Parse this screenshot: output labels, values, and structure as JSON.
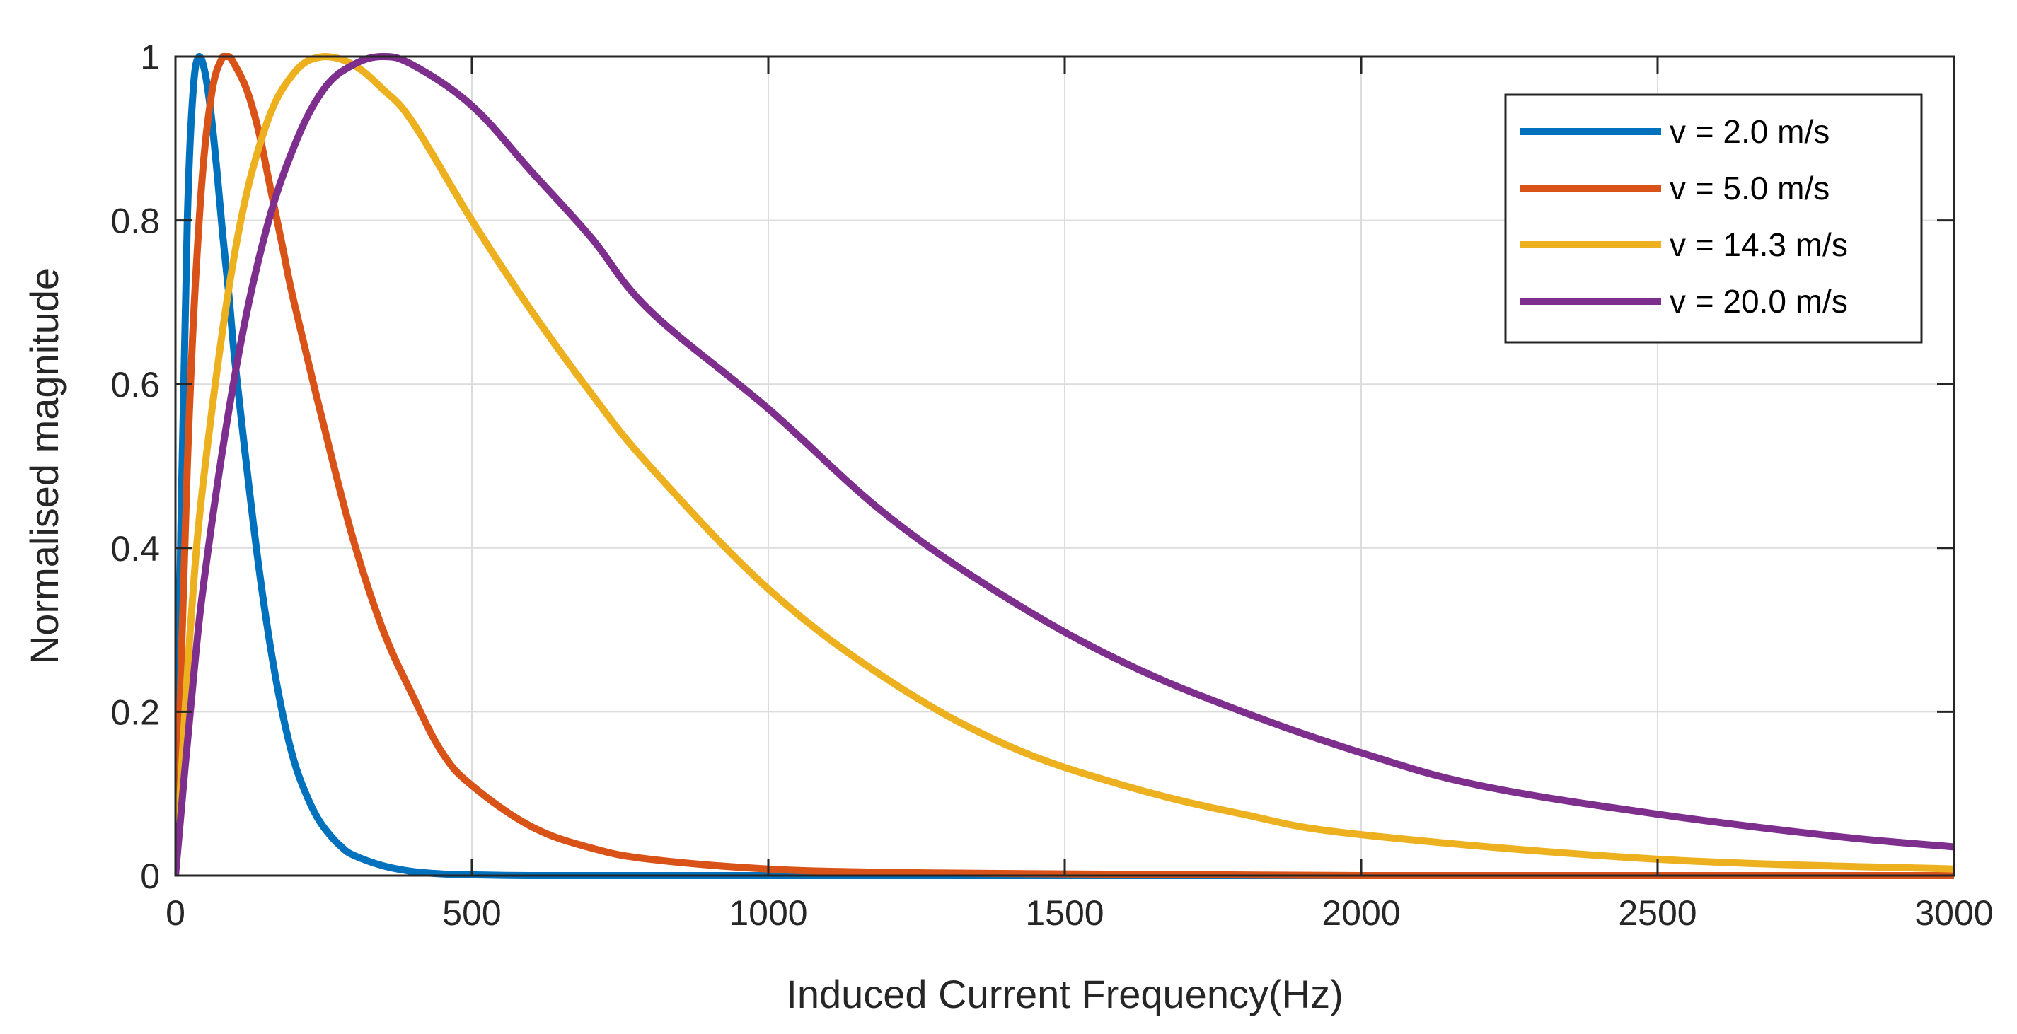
{
  "chart_data": {
    "type": "line",
    "title": "",
    "xlabel": "Induced Current Frequency(Hz)",
    "ylabel": "Normalised magnitude",
    "xlim": [
      0,
      3000
    ],
    "ylim": [
      0,
      1
    ],
    "xticks": [
      0,
      500,
      1000,
      1500,
      2000,
      2500,
      3000
    ],
    "xtick_labels": [
      "0",
      "500",
      "1000",
      "1500",
      "2000",
      "2500",
      "3000"
    ],
    "yticks": [
      0,
      0.2,
      0.4,
      0.6,
      0.8,
      1
    ],
    "ytick_labels": [
      "0",
      "0.2",
      "0.4",
      "0.6",
      "0.8",
      "1"
    ],
    "grid": true,
    "legend_position": "top-right",
    "series": [
      {
        "name": "v = 2.0 m/s",
        "color": "#0072BD",
        "x": [
          0,
          10,
          20,
          30,
          40,
          50,
          60,
          70,
          80,
          90,
          100,
          120,
          140,
          160,
          180,
          200,
          220,
          240,
          260,
          280,
          300,
          350,
          400,
          450,
          500,
          600,
          800,
          1000,
          1500,
          2000,
          3000
        ],
        "y": [
          0,
          0.46,
          0.8,
          0.96,
          1.0,
          0.98,
          0.93,
          0.86,
          0.78,
          0.71,
          0.63,
          0.5,
          0.38,
          0.28,
          0.2,
          0.14,
          0.1,
          0.07,
          0.05,
          0.035,
          0.025,
          0.012,
          0.005,
          0.002,
          0.001,
          0.0,
          0.0,
          0.0,
          0.0,
          0.0,
          0.0
        ]
      },
      {
        "name": "v = 5.0 m/s",
        "color": "#D95319",
        "x": [
          0,
          20,
          40,
          60,
          80,
          90,
          100,
          120,
          140,
          160,
          180,
          200,
          250,
          300,
          350,
          400,
          450,
          500,
          600,
          700,
          800,
          1000,
          1200,
          1500,
          2000,
          2500,
          3000
        ],
        "y": [
          0,
          0.5,
          0.8,
          0.95,
          1.0,
          1.0,
          0.99,
          0.96,
          0.91,
          0.84,
          0.77,
          0.7,
          0.55,
          0.41,
          0.3,
          0.22,
          0.15,
          0.11,
          0.06,
          0.034,
          0.02,
          0.008,
          0.004,
          0.002,
          0.0,
          0.0,
          0.0
        ]
      },
      {
        "name": "v = 14.3 m/s",
        "color": "#EDB120",
        "x": [
          0,
          25,
          50,
          100,
          150,
          200,
          250,
          300,
          350,
          400,
          500,
          600,
          700,
          800,
          1000,
          1200,
          1400,
          1600,
          1800,
          2000,
          2500,
          3000
        ],
        "y": [
          0,
          0.3,
          0.5,
          0.76,
          0.91,
          0.98,
          1.0,
          0.99,
          0.96,
          0.92,
          0.8,
          0.69,
          0.59,
          0.5,
          0.35,
          0.24,
          0.16,
          0.11,
          0.075,
          0.05,
          0.02,
          0.008
        ]
      },
      {
        "name": "v = 20.0 m/s",
        "color": "#7E2F8E",
        "x": [
          0,
          25,
          50,
          100,
          150,
          200,
          250,
          300,
          350,
          400,
          500,
          600,
          700,
          800,
          1000,
          1200,
          1400,
          1600,
          1800,
          2000,
          2200,
          2500,
          2800,
          3000
        ],
        "y": [
          0,
          0.2,
          0.37,
          0.61,
          0.78,
          0.89,
          0.96,
          0.99,
          1.0,
          0.99,
          0.94,
          0.86,
          0.78,
          0.69,
          0.57,
          0.44,
          0.34,
          0.26,
          0.2,
          0.15,
          0.11,
          0.075,
          0.048,
          0.035
        ]
      }
    ]
  }
}
